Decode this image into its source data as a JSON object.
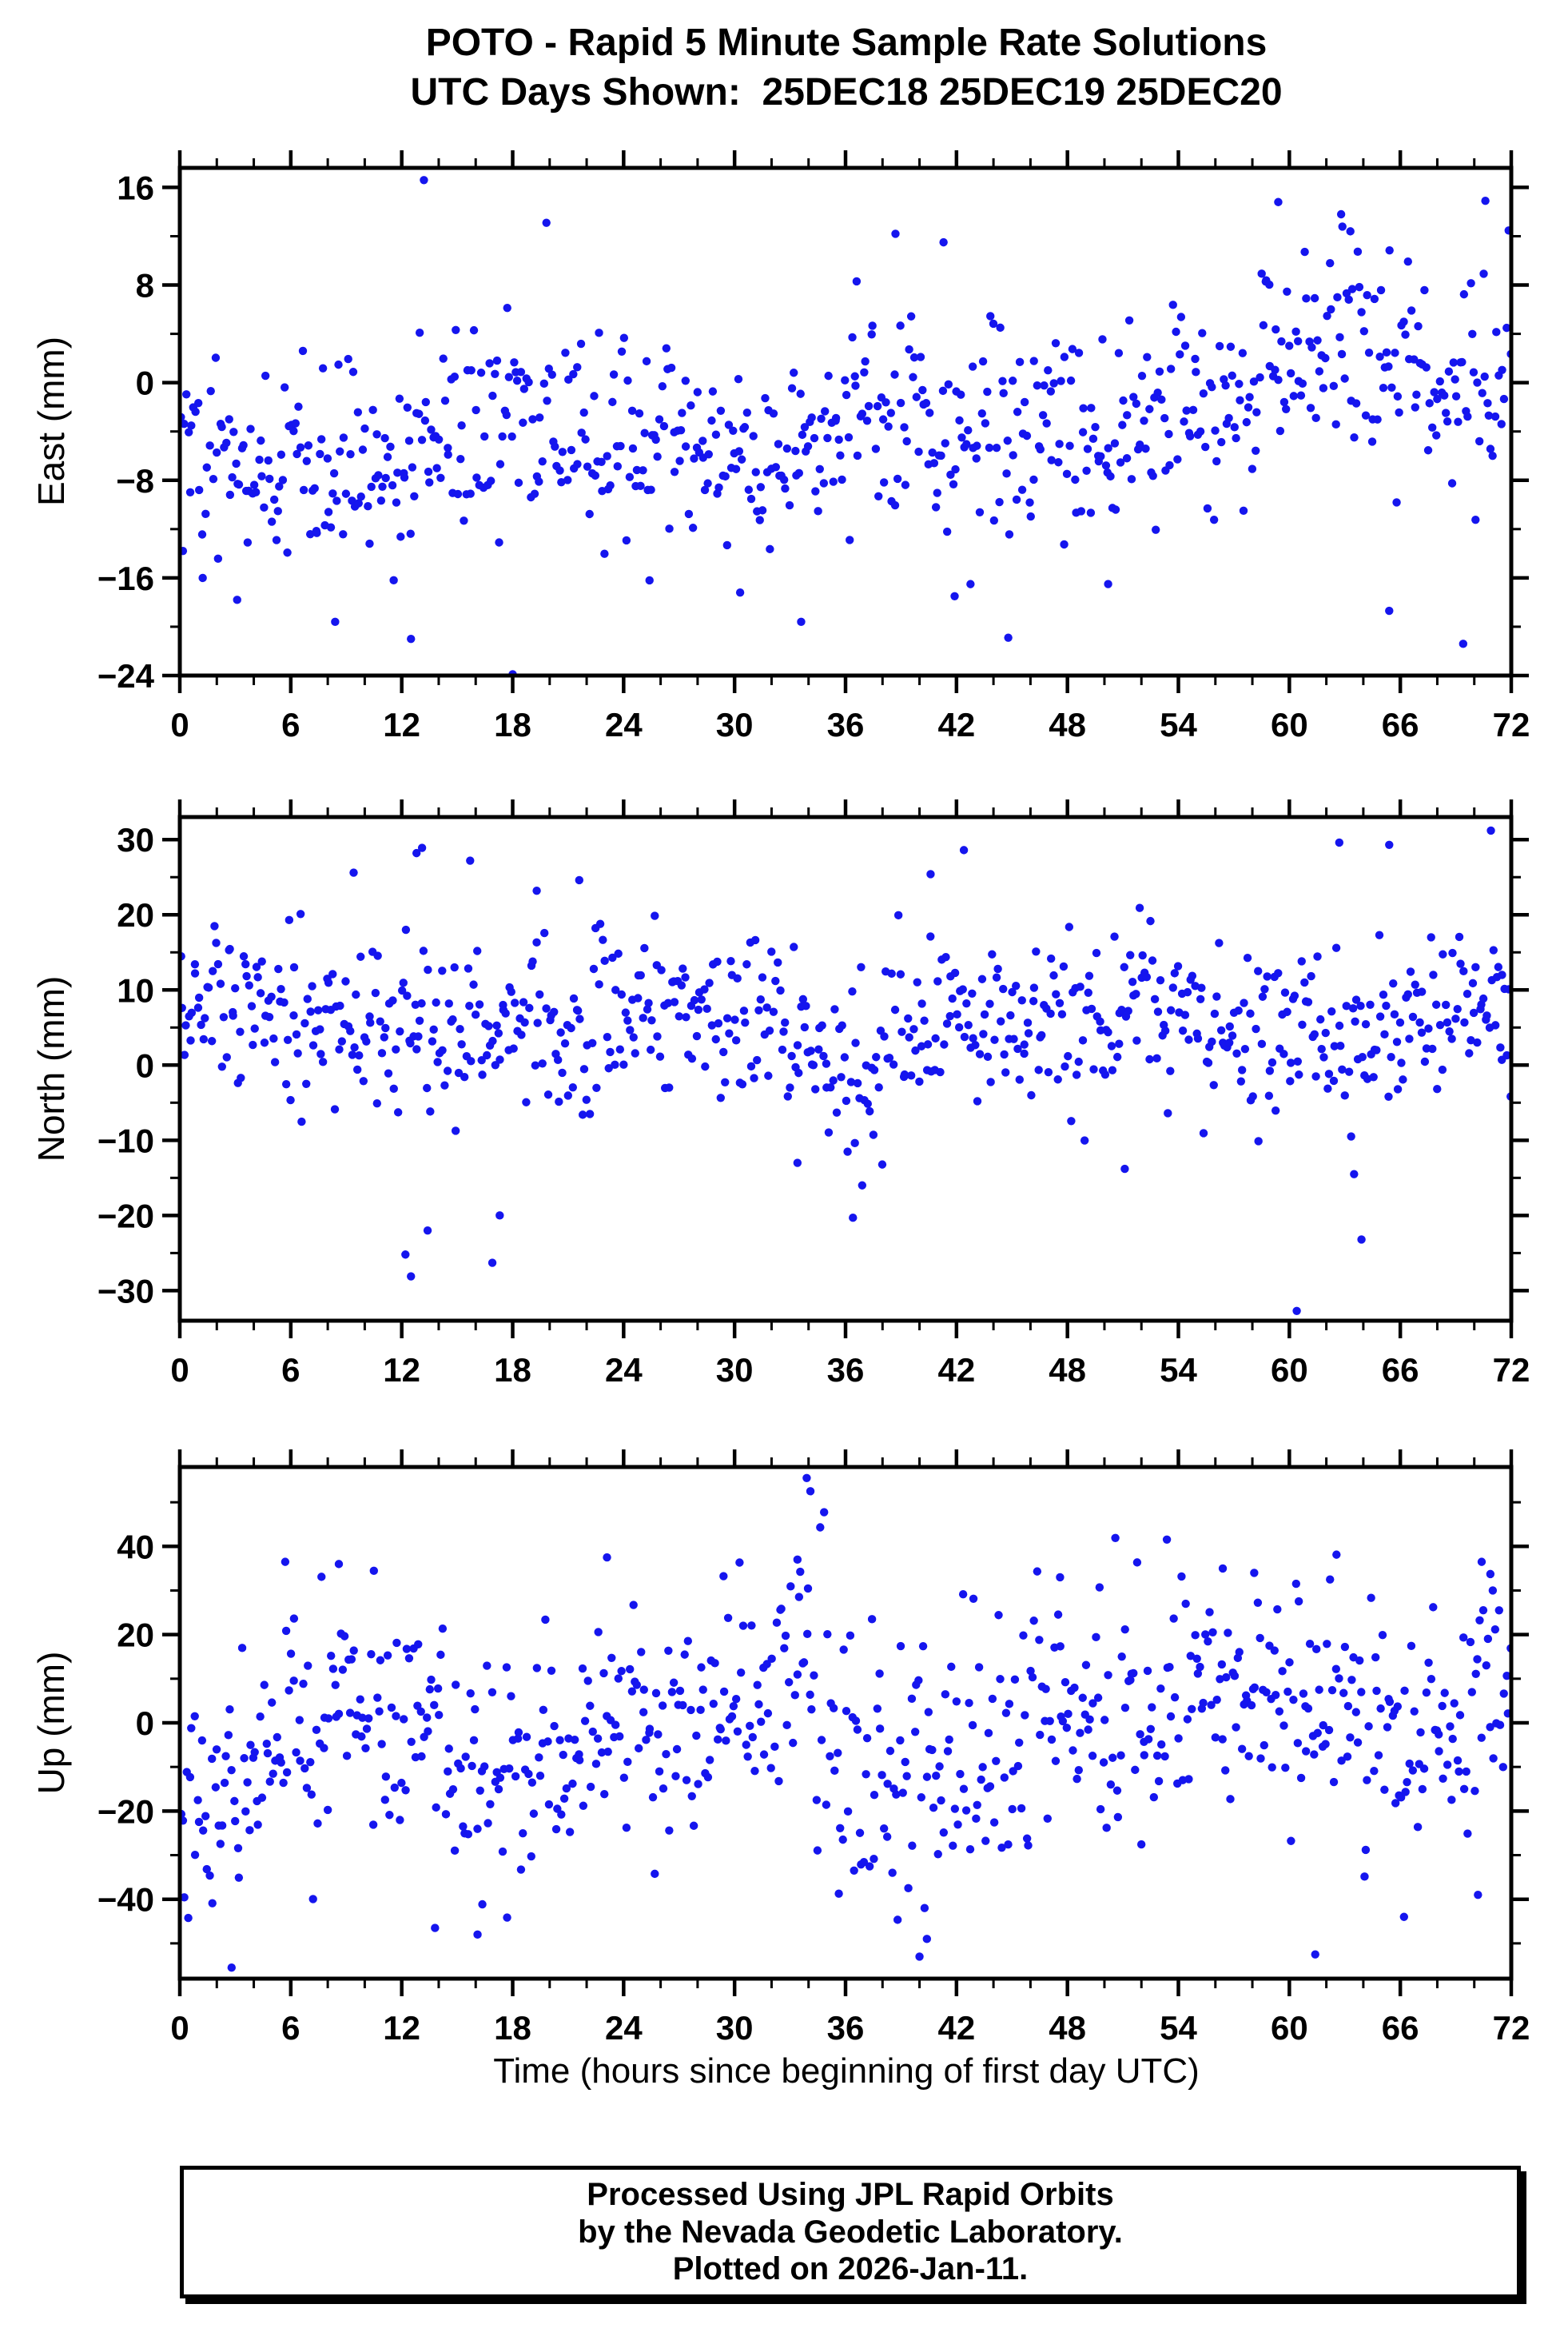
{
  "station": "POTO",
  "chart_data": {
    "type": "scatter",
    "title": "POTO - Rapid 5 Minute Sample Rate Solutions",
    "subtitle": "UTC Days Shown:  25DEC18 25DEC19 25DEC20",
    "xlabel": "Time (hours since beginning of first day UTC)",
    "xlim": [
      0,
      72
    ],
    "x_tick_values": [
      0,
      6,
      12,
      18,
      24,
      30,
      36,
      42,
      48,
      54,
      60,
      66,
      72
    ],
    "x_tick_labels": [
      "0",
      "6",
      "12",
      "18",
      "24",
      "30",
      "36",
      "42",
      "48",
      "54",
      "60",
      "66",
      "72"
    ],
    "x_minor_step": 2,
    "axis_color": "#000000",
    "marker": {
      "color": "#1515ee",
      "radius": 5.2
    },
    "panels": [
      {
        "name": "east",
        "ylabel": "East (mm)",
        "ylim": [
          -24,
          17.6
        ],
        "ytick_values": [
          16,
          8,
          0,
          -8,
          -16,
          -24
        ],
        "ytick_labels": [
          "16",
          "8",
          "0",
          "−8",
          "−16",
          "−24"
        ],
        "y_minor_step": 4,
        "n": 700,
        "seed": 42,
        "noise_sd": 4.2,
        "trend": [
          [
            0,
            -6
          ],
          [
            3,
            -7
          ],
          [
            6,
            -6.5
          ],
          [
            9,
            -7
          ],
          [
            12,
            -6.5
          ],
          [
            15,
            -4
          ],
          [
            18,
            -3
          ],
          [
            21,
            -3.5
          ],
          [
            24,
            -4
          ],
          [
            27,
            -4.5
          ],
          [
            30,
            -5.5
          ],
          [
            33,
            -6
          ],
          [
            36,
            -3
          ],
          [
            39,
            -2
          ],
          [
            42,
            -4
          ],
          [
            45,
            -5
          ],
          [
            48,
            -5
          ],
          [
            51,
            -4
          ],
          [
            54,
            -2.5
          ],
          [
            57,
            -2
          ],
          [
            59,
            1.5
          ],
          [
            61,
            3
          ],
          [
            63,
            3.5
          ],
          [
            65,
            2
          ],
          [
            67,
            1
          ],
          [
            69,
            -1.5
          ],
          [
            72,
            0.5
          ]
        ],
        "outliers": [
          [
            13.2,
            16.6
          ],
          [
            18.0,
            -23.9
          ],
          [
            8.4,
            -19.6
          ],
          [
            12.5,
            -21.0
          ],
          [
            3.1,
            -17.8
          ],
          [
            30.3,
            -17.2
          ],
          [
            33.6,
            -19.6
          ],
          [
            59.4,
            14.8
          ],
          [
            62.8,
            13.8
          ],
          [
            63.3,
            12.4
          ],
          [
            38.7,
            12.2
          ],
          [
            41.3,
            11.5
          ],
          [
            36.6,
            8.3
          ],
          [
            44.8,
            -20.9
          ],
          [
            41.9,
            -17.5
          ],
          [
            65.4,
            -18.7
          ],
          [
            69.4,
            -21.4
          ],
          [
            50.2,
            -16.5
          ],
          [
            25.4,
            -16.2
          ],
          [
            70.6,
            14.9
          ]
        ]
      },
      {
        "name": "north",
        "ylabel": "North (mm)",
        "ylim": [
          -34,
          33
        ],
        "ytick_values": [
          30,
          20,
          10,
          0,
          -10,
          -20,
          -30
        ],
        "ytick_labels": [
          "30",
          "20",
          "10",
          "0",
          "−10",
          "−20",
          "−30"
        ],
        "y_minor_step": 5,
        "n": 700,
        "seed": 137,
        "noise_sd": 5.6,
        "trend": [
          [
            0,
            7
          ],
          [
            3,
            9
          ],
          [
            6,
            6
          ],
          [
            9,
            5
          ],
          [
            12,
            4
          ],
          [
            15,
            4
          ],
          [
            18,
            4
          ],
          [
            21,
            4.5
          ],
          [
            24,
            5
          ],
          [
            27,
            6
          ],
          [
            30,
            6.5
          ],
          [
            33,
            5
          ],
          [
            36,
            0
          ],
          [
            38,
            1
          ],
          [
            40,
            4
          ],
          [
            42,
            6.5
          ],
          [
            45,
            6
          ],
          [
            48,
            5.5
          ],
          [
            51,
            7.5
          ],
          [
            54,
            8
          ],
          [
            57,
            6
          ],
          [
            60,
            3.5
          ],
          [
            63,
            5
          ],
          [
            66,
            6.5
          ],
          [
            69,
            7
          ],
          [
            72,
            6.5
          ]
        ],
        "outliers": [
          [
            9.4,
            25.6
          ],
          [
            13.1,
            28.9
          ],
          [
            12.8,
            28.2
          ],
          [
            15.7,
            27.2
          ],
          [
            19.3,
            23.2
          ],
          [
            21.6,
            24.6
          ],
          [
            12.2,
            -25.2
          ],
          [
            12.5,
            -28.1
          ],
          [
            13.4,
            -22.0
          ],
          [
            16.9,
            -26.3
          ],
          [
            17.3,
            -20.0
          ],
          [
            36.4,
            -20.3
          ],
          [
            36.9,
            -16.0
          ],
          [
            42.4,
            28.6
          ],
          [
            40.6,
            25.4
          ],
          [
            62.7,
            29.6
          ],
          [
            65.4,
            29.3
          ],
          [
            70.9,
            31.2
          ],
          [
            60.4,
            -32.7
          ],
          [
            63.9,
            -23.2
          ],
          [
            63.5,
            -14.5
          ],
          [
            51.1,
            -13.8
          ],
          [
            33.4,
            -13.0
          ],
          [
            71.5,
            12.0
          ]
        ]
      },
      {
        "name": "up",
        "ylabel": "Up (mm)",
        "ylim": [
          -58,
          58
        ],
        "ytick_values": [
          40,
          20,
          0,
          -20,
          -40
        ],
        "ytick_labels": [
          "40",
          "20",
          "0",
          "−20",
          "−40"
        ],
        "y_minor_step": 10,
        "n": 700,
        "seed": 2024,
        "noise_sd": 13.5,
        "trend": [
          [
            0,
            -14
          ],
          [
            2,
            -18
          ],
          [
            4,
            -10
          ],
          [
            6,
            -4
          ],
          [
            8,
            2
          ],
          [
            10,
            6
          ],
          [
            12,
            -2
          ],
          [
            14,
            -8
          ],
          [
            16,
            -10
          ],
          [
            18,
            -6
          ],
          [
            20,
            -4
          ],
          [
            22,
            -3
          ],
          [
            24,
            -2
          ],
          [
            26,
            -1
          ],
          [
            28,
            1
          ],
          [
            30,
            4
          ],
          [
            32,
            8
          ],
          [
            34,
            10
          ],
          [
            36,
            -4
          ],
          [
            38,
            -12
          ],
          [
            40,
            -14
          ],
          [
            42,
            -8
          ],
          [
            44,
            -4
          ],
          [
            46,
            -1
          ],
          [
            48,
            2
          ],
          [
            50,
            3
          ],
          [
            52,
            5
          ],
          [
            54,
            5
          ],
          [
            56,
            7
          ],
          [
            58,
            5
          ],
          [
            60,
            2
          ],
          [
            62,
            3
          ],
          [
            64,
            1
          ],
          [
            66,
            -6
          ],
          [
            68,
            -3
          ],
          [
            70,
            4
          ],
          [
            72,
            9
          ]
        ],
        "outliers": [
          [
            33.9,
            55.5
          ],
          [
            34.1,
            52.5
          ],
          [
            2.8,
            -55.5
          ],
          [
            16.1,
            -48.0
          ],
          [
            13.8,
            -46.5
          ],
          [
            40.0,
            -53.0
          ],
          [
            40.4,
            -49.0
          ],
          [
            61.4,
            -52.5
          ],
          [
            66.2,
            -44.0
          ],
          [
            70.2,
            -39.0
          ],
          [
            5.7,
            36.5
          ],
          [
            8.6,
            36.0
          ],
          [
            23.1,
            37.5
          ],
          [
            33.4,
            37.0
          ],
          [
            47.6,
            33.0
          ],
          [
            56.4,
            35.0
          ],
          [
            58.1,
            34.0
          ],
          [
            62.2,
            32.5
          ],
          [
            70.4,
            36.5
          ],
          [
            71.0,
            30.0
          ]
        ]
      }
    ]
  },
  "footer": {
    "line1": "Processed Using JPL Rapid Orbits",
    "line2": "by the Nevada Geodetic Laboratory.",
    "line3": "Plotted on 2026-Jan-11."
  }
}
